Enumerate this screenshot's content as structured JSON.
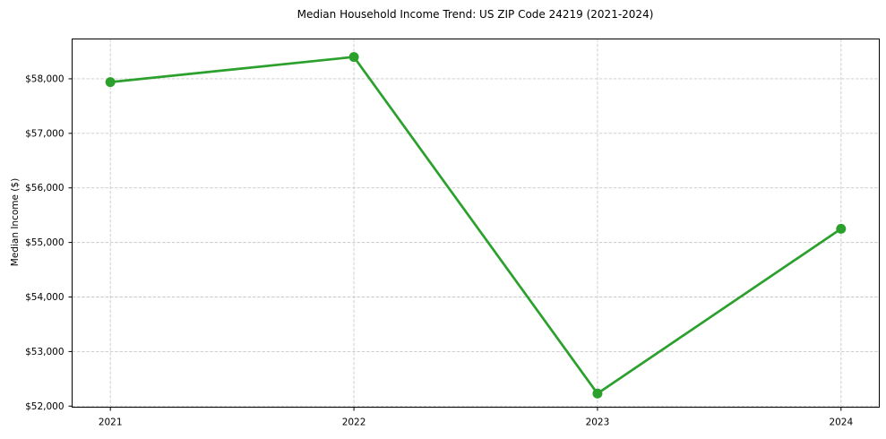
{
  "figure": {
    "background": "#ffffff"
  },
  "chart_data": {
    "type": "line",
    "title": "Median Household Income Trend: US ZIP Code 24219 (2021-2024)",
    "xlabel": "",
    "ylabel": "Median Income ($)",
    "x": [
      2021,
      2022,
      2023,
      2024
    ],
    "x_tick_labels": [
      "2021",
      "2022",
      "2023",
      "2024"
    ],
    "series": [
      {
        "name": "Median Household Income",
        "values": [
          57940,
          58400,
          52230,
          55250
        ],
        "color": "#2ca02c",
        "marker": "circle",
        "line_width": 2.7,
        "marker_radius": 5.5
      }
    ],
    "y_ticks": [
      52000,
      53000,
      54000,
      55000,
      56000,
      57000,
      58000
    ],
    "y_tick_labels": [
      "$52,000",
      "$53,000",
      "$54,000",
      "$55,000",
      "$56,000",
      "$57,000",
      "$58,000"
    ],
    "xlim": [
      2020.843,
      2024.157
    ],
    "ylim": [
      51980,
      58730
    ],
    "grid": true,
    "grid_color": "#c9c9c9",
    "grid_style": "dashed",
    "legend": "none",
    "axes": {
      "spine_color": "#000000",
      "tick_color": "#000000",
      "tick_label_color": "#000000",
      "tick_font_size": 10.5
    }
  }
}
